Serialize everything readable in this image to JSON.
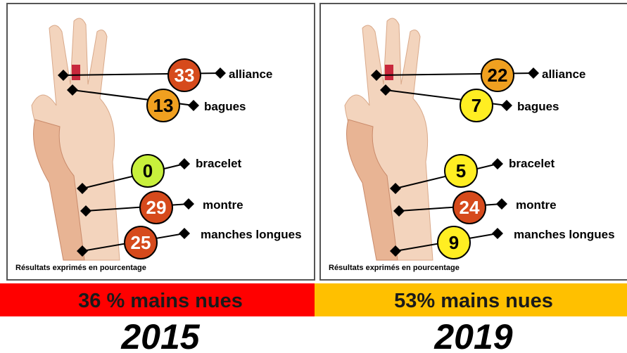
{
  "panels": [
    {
      "year": "2015",
      "summary": "36 % mains nues",
      "summary_color": "#ff0000",
      "note": "Résultats exprimés en pourcentage",
      "items": [
        {
          "label": "alliance",
          "value": 33,
          "color": "#d64a1c"
        },
        {
          "label": "bagues",
          "value": 13,
          "color": "#f0a020"
        },
        {
          "label": "bracelet",
          "value": 0,
          "color": "#c8f03c"
        },
        {
          "label": "montre",
          "value": 29,
          "color": "#d64a1c"
        },
        {
          "label": "manches longues",
          "value": 25,
          "color": "#d64a1c"
        }
      ]
    },
    {
      "year": "2019",
      "summary": "53% mains nues",
      "summary_color": "#ffc000",
      "note": "Résultats exprimés en pourcentage",
      "items": [
        {
          "label": "alliance",
          "value": 22,
          "color": "#f0a020"
        },
        {
          "label": "bagues",
          "value": 7,
          "color": "#ffee22"
        },
        {
          "label": "bracelet",
          "value": 5,
          "color": "#ffee22"
        },
        {
          "label": "montre",
          "value": 24,
          "color": "#d64a1c"
        },
        {
          "label": "manches longues",
          "value": 9,
          "color": "#ffee22"
        }
      ]
    }
  ]
}
